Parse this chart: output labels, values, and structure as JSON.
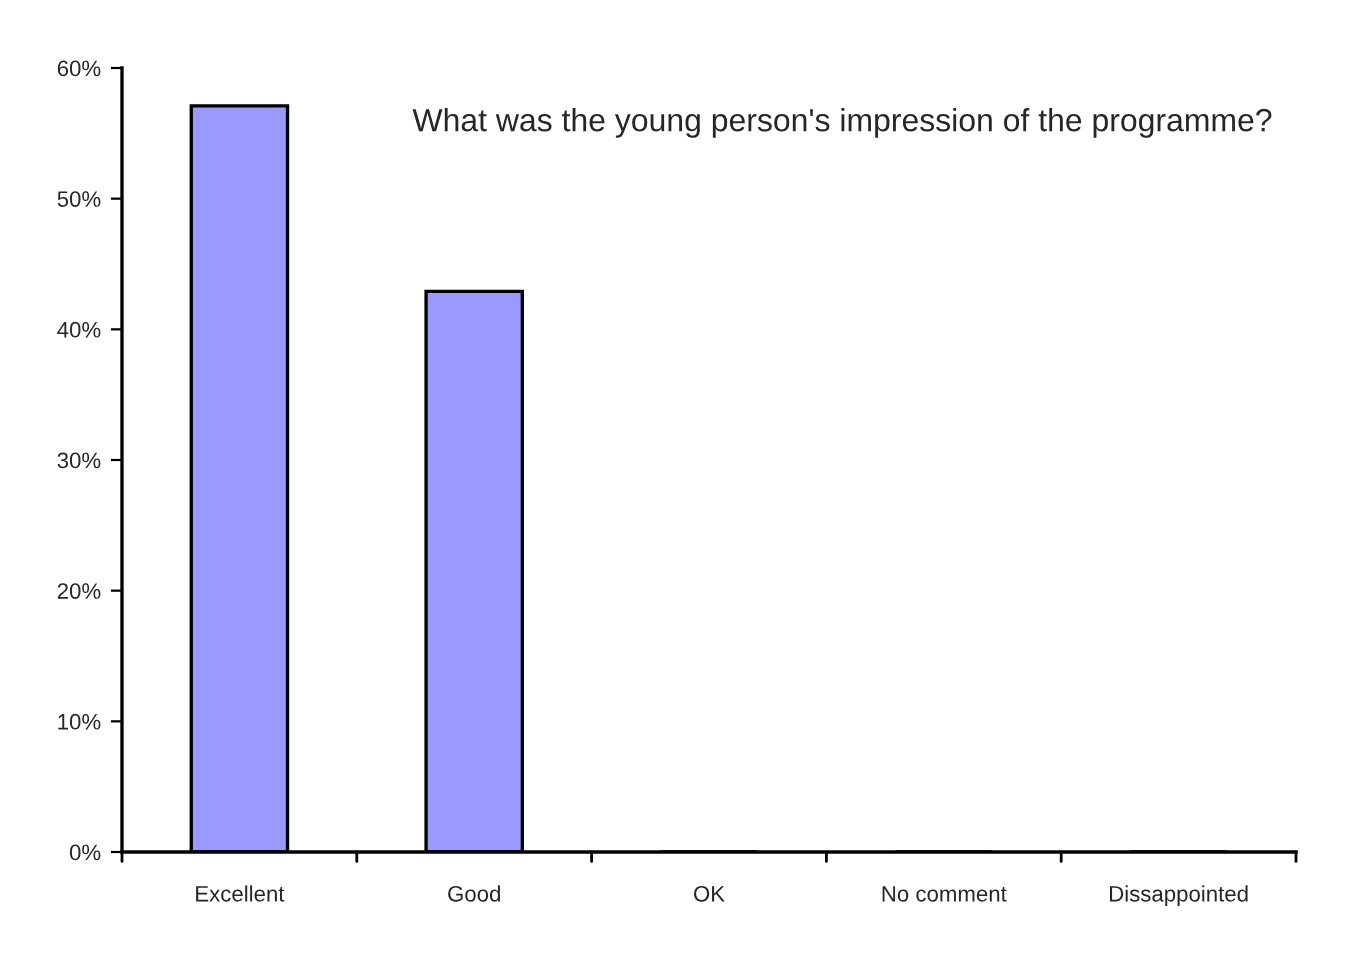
{
  "chart_data": {
    "type": "bar",
    "title": "What was the young person's impression of the programme?",
    "categories": [
      "Excellent",
      "Good",
      "OK",
      "No comment",
      "Dissappointed"
    ],
    "values": [
      57.1,
      42.9,
      0,
      0,
      0
    ],
    "color": "#9999ff",
    "ylim": [
      0,
      60
    ],
    "yticks": [
      {
        "value": 0,
        "label": "0%"
      },
      {
        "value": 10,
        "label": "10%"
      },
      {
        "value": 20,
        "label": "20%"
      },
      {
        "value": 30,
        "label": "30%"
      },
      {
        "value": 40,
        "label": "40%"
      },
      {
        "value": 50,
        "label": "50%"
      },
      {
        "value": 60,
        "label": "60%"
      }
    ],
    "grid": false,
    "legend": false
  }
}
